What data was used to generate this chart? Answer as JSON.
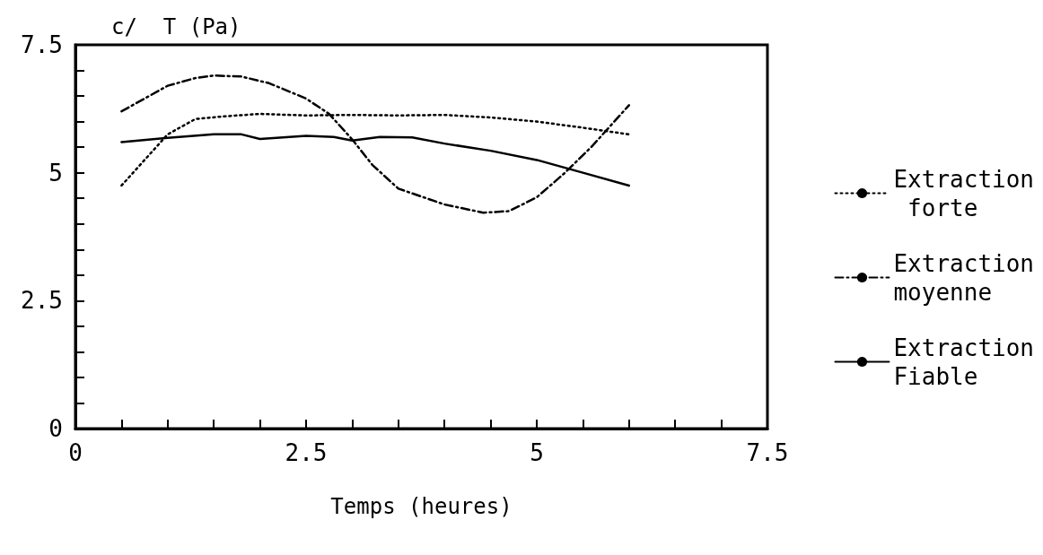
{
  "chart_data": {
    "type": "line",
    "ylabel": "c/  T (Pa)",
    "xlabel": "Temps (heures)",
    "xlim": [
      0,
      7.5
    ],
    "ylim": [
      0,
      7.5
    ],
    "xticks": [
      0,
      {
        "value": 0.5,
        "label": null
      },
      {
        "value": 1,
        "label": null
      },
      {
        "value": 1.5,
        "label": null
      },
      {
        "value": 2,
        "label": null
      },
      2.5,
      {
        "value": 3,
        "label": null
      },
      {
        "value": 3.5,
        "label": null
      },
      {
        "value": 4,
        "label": null
      },
      {
        "value": 4.5,
        "label": null
      },
      5,
      {
        "value": 5.5,
        "label": null
      },
      {
        "value": 6,
        "label": null
      },
      {
        "value": 6.5,
        "label": null
      },
      {
        "value": 7,
        "label": null
      },
      7.5
    ],
    "yticks": [
      0,
      {
        "value": 0.5,
        "label": null
      },
      {
        "value": 1,
        "label": null
      },
      {
        "value": 1.5,
        "label": null
      },
      {
        "value": 2,
        "label": null
      },
      2.5,
      {
        "value": 3,
        "label": null
      },
      {
        "value": 3.5,
        "label": null
      },
      {
        "value": 4,
        "label": null
      },
      {
        "value": 4.5,
        "label": null
      },
      5,
      {
        "value": 5.5,
        "label": null
      },
      {
        "value": 6,
        "label": null
      },
      {
        "value": 6.5,
        "label": null
      },
      {
        "value": 7,
        "label": null
      },
      7.5
    ],
    "grid": false,
    "legend": "right",
    "marker": "none",
    "series": [
      {
        "name": "Extraction\n forte",
        "color": "#000000",
        "line_style": "dotted",
        "x": [
          0.5,
          0.8,
          1.0,
          1.3,
          1.6,
          2.0,
          2.5,
          3.0,
          3.5,
          4.0,
          4.5,
          5.0,
          5.5,
          6.0
        ],
        "values": [
          4.75,
          5.35,
          5.75,
          6.05,
          6.1,
          6.15,
          6.12,
          6.13,
          6.12,
          6.13,
          6.08,
          6.0,
          5.88,
          5.75
        ]
      },
      {
        "name": "Extraction\nmoyenne",
        "color": "#000000",
        "line_style": "dashed",
        "x": [
          0.5,
          0.8,
          1.0,
          1.3,
          1.5,
          1.8,
          2.1,
          2.5,
          2.75,
          3.0,
          3.22,
          3.5,
          4.0,
          4.42,
          4.7,
          5.0,
          5.3,
          5.6,
          6.0
        ],
        "values": [
          6.2,
          6.5,
          6.7,
          6.85,
          6.9,
          6.88,
          6.75,
          6.45,
          6.15,
          5.65,
          5.15,
          4.69,
          4.38,
          4.22,
          4.25,
          4.52,
          4.99,
          5.52,
          6.32
        ]
      },
      {
        "name": "Extraction\nFiable",
        "color": "#000000",
        "line_style": "solid",
        "x": [
          0.5,
          1.0,
          1.5,
          1.8,
          2.0,
          2.5,
          2.8,
          3.0,
          3.3,
          3.65,
          4.0,
          4.5,
          5.0,
          5.5,
          6.0
        ],
        "values": [
          5.6,
          5.68,
          5.75,
          5.75,
          5.66,
          5.72,
          5.7,
          5.63,
          5.7,
          5.69,
          5.57,
          5.43,
          5.25,
          5.0,
          4.75
        ]
      }
    ]
  }
}
